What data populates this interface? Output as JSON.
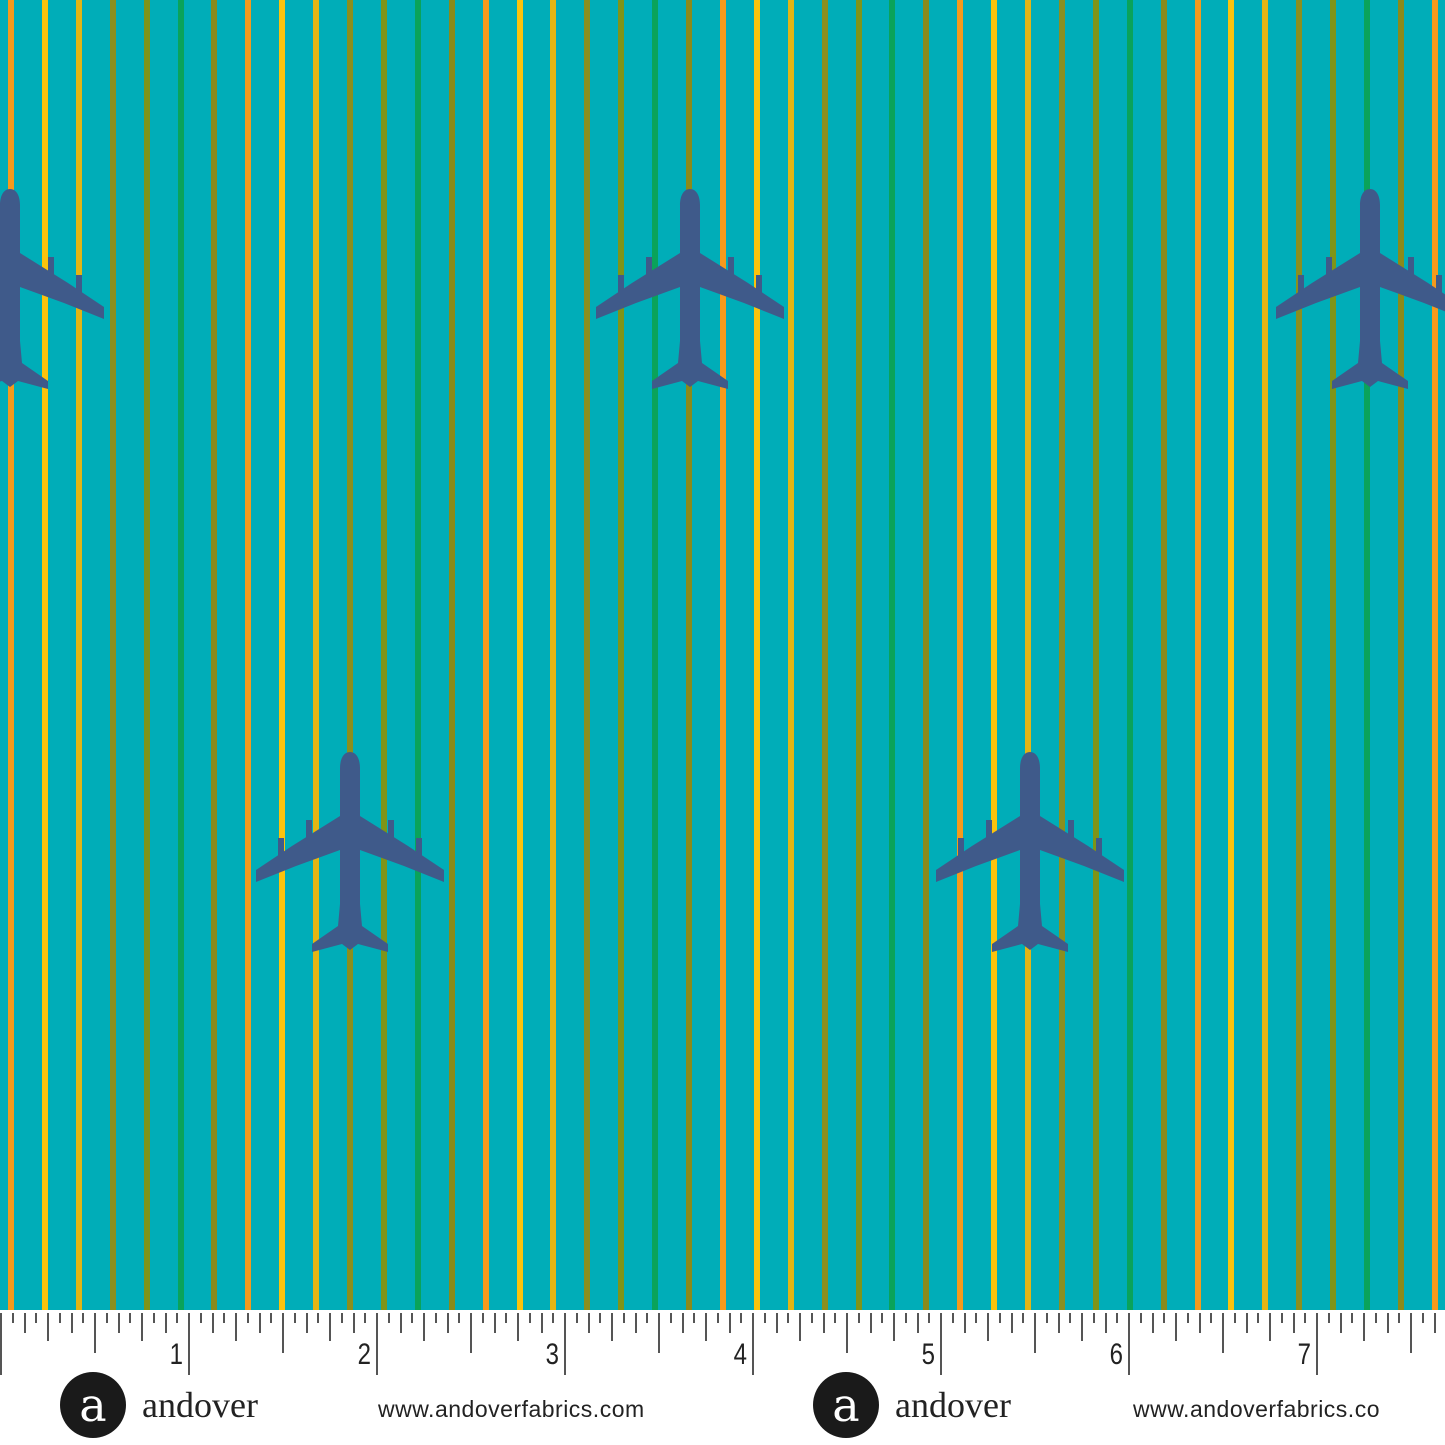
{
  "fabric": {
    "background_color": "#00adb8",
    "stripe_colors": [
      "#f59a1c",
      "#fbc30d",
      "#e3b514",
      "#8b8f1f",
      "#7f9418",
      "#0aa35a",
      "#8a8a1a"
    ],
    "plane_color": "#3f5a8a",
    "motif": "airplane-icon"
  },
  "ruler": {
    "numbers": [
      "1",
      "2",
      "3",
      "4",
      "5",
      "6",
      "7"
    ],
    "unit": "inch",
    "subdivisions": 16
  },
  "branding": [
    {
      "logo_letter": "a",
      "brand": "andover",
      "url": "www.andoverfabrics.com"
    },
    {
      "logo_letter": "a",
      "brand": "andover",
      "url": "www.andoverfabrics.co"
    }
  ]
}
